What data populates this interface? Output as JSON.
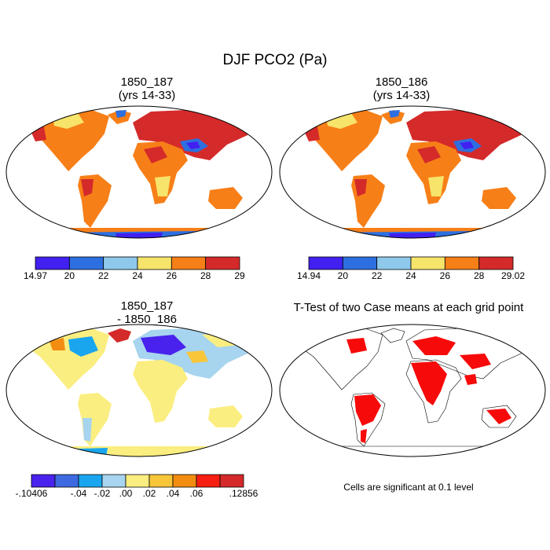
{
  "title": "DJF PCO2 (Pa)",
  "panels": [
    {
      "id": "p1",
      "title_line1": "1850_187",
      "title_line2": "(yrs 14-33)"
    },
    {
      "id": "p2",
      "title_line1": "1850_186",
      "title_line2": "(yrs 14-33)"
    },
    {
      "id": "p3",
      "title_line1": "1850_187",
      "title_line2": "- 1850_186"
    },
    {
      "id": "p4",
      "title_line1": "T-Test of two Case means at each grid point"
    }
  ],
  "colorbars": [
    {
      "id": "cb1",
      "colors": [
        "#4120f0",
        "#2d6fe0",
        "#8ec9ec",
        "#f7e46a",
        "#f77f18",
        "#d42a2a"
      ],
      "labels": [
        "14.97",
        "20",
        "22",
        "24",
        "26",
        "28",
        "29"
      ]
    },
    {
      "id": "cb2",
      "colors": [
        "#4120f0",
        "#2d6fe0",
        "#8ec9ec",
        "#f7e46a",
        "#f77f18",
        "#d42a2a"
      ],
      "labels": [
        "14.94",
        "20",
        "22",
        "24",
        "26",
        "28",
        "29.02"
      ]
    },
    {
      "id": "cb3",
      "colors": [
        "#4a22ee",
        "#3d6ae0",
        "#1aa6ee",
        "#a7d4ee",
        "#fbee80",
        "#f9c63a",
        "#f28d12",
        "#f71e12",
        "#d42a2a"
      ],
      "labels": [
        "-.10406",
        "-.04",
        "-.02",
        ".00",
        ".02",
        ".04",
        ".06",
        ".12856"
      ]
    }
  ],
  "significance_color": "#f70a0a",
  "footnote": "Cells are significant at 0.1 level"
}
